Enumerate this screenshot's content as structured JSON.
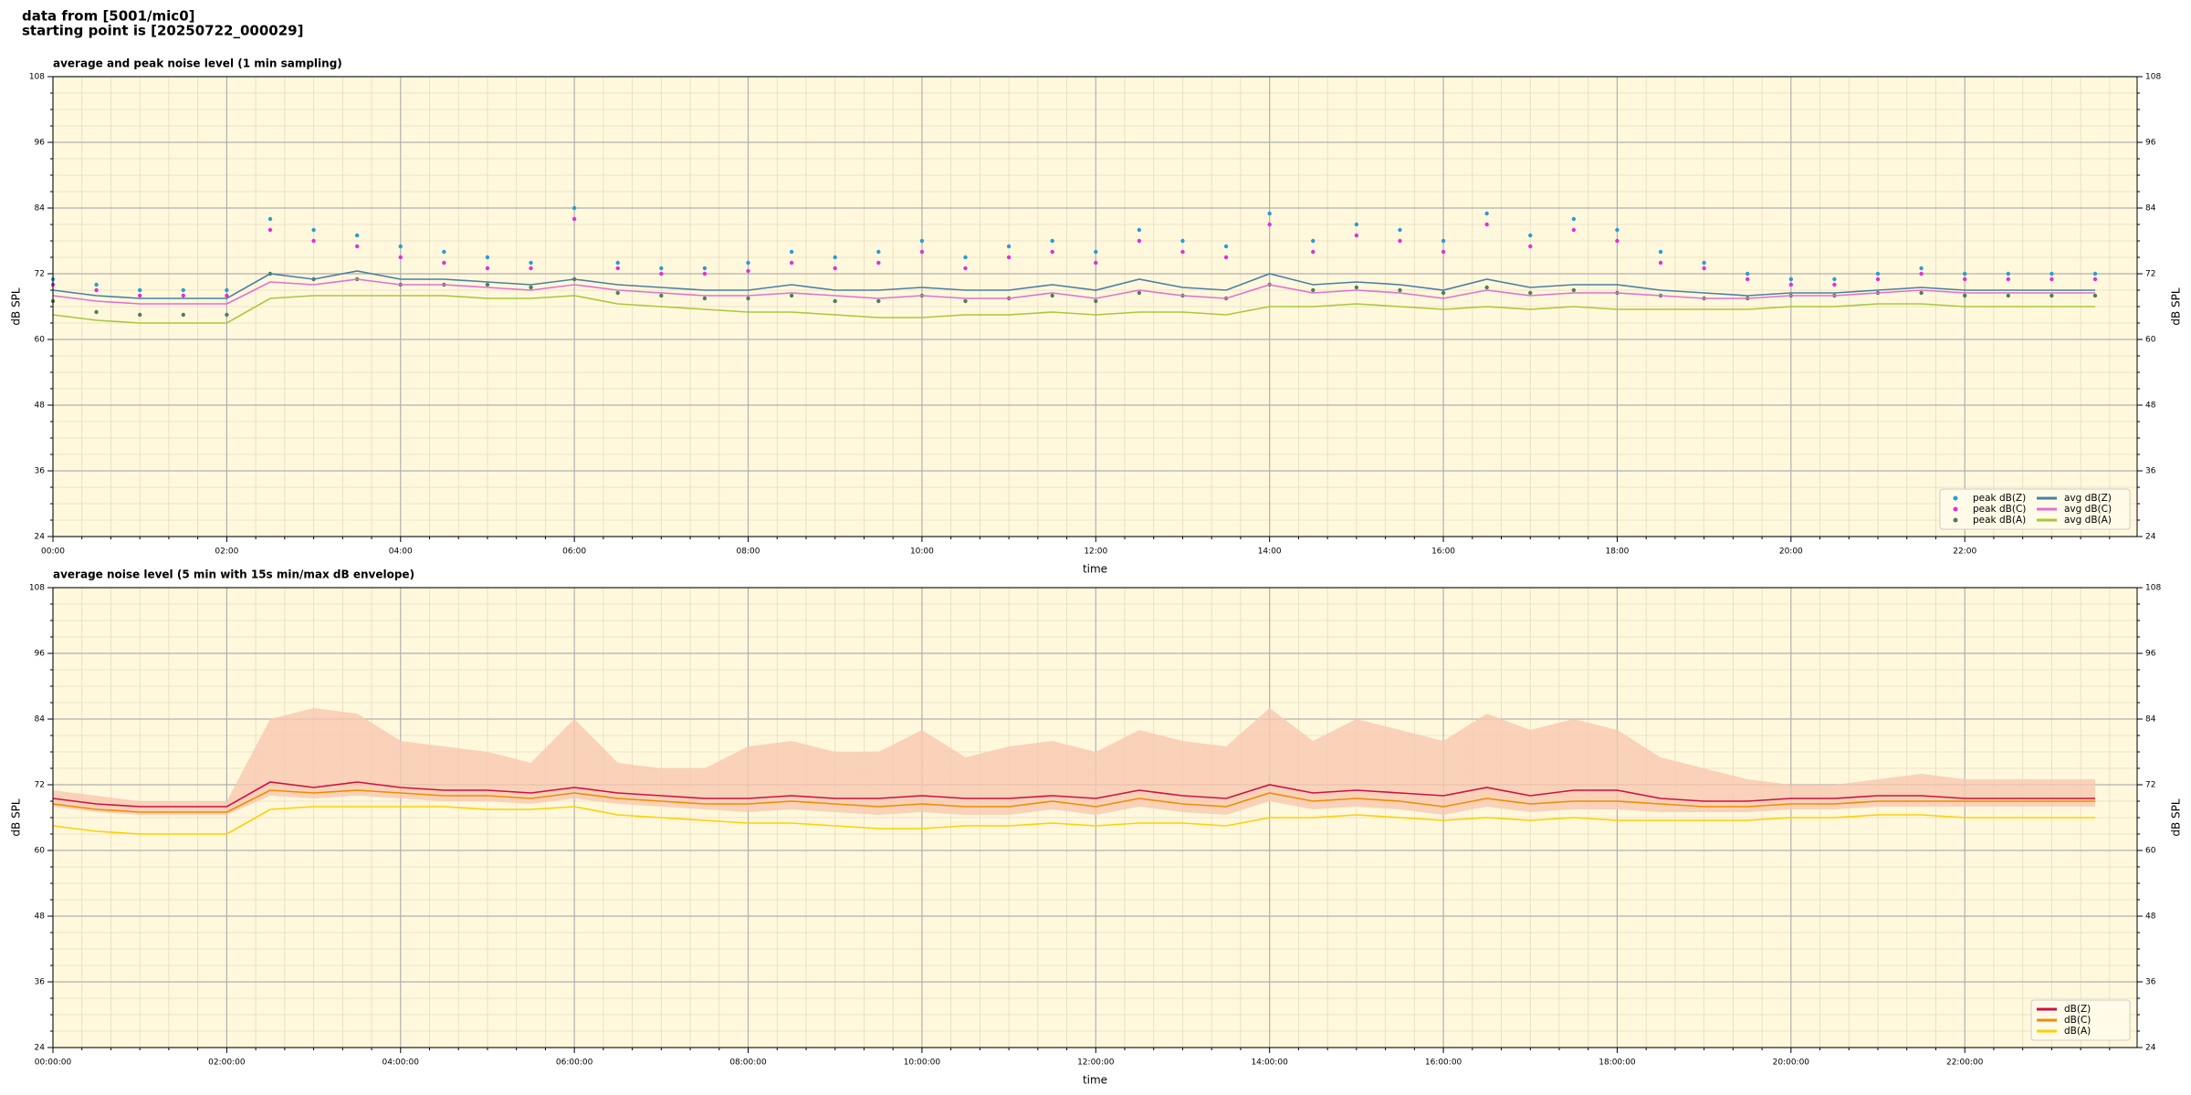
{
  "header": [
    "data from [5001/mic0]",
    "starting point is [20250722_000029]"
  ],
  "chart_data": [
    {
      "type": "line",
      "title": "average and peak noise level (1 min sampling)",
      "xlabel": "time",
      "ylabel": "dB SPL",
      "x": [
        "00:00",
        "00:30",
        "01:00",
        "01:30",
        "02:00",
        "02:30",
        "03:00",
        "03:30",
        "04:00",
        "04:30",
        "05:00",
        "05:30",
        "06:00",
        "06:30",
        "07:00",
        "07:30",
        "08:00",
        "08:30",
        "09:00",
        "09:30",
        "10:00",
        "10:30",
        "11:00",
        "11:30",
        "12:00",
        "12:30",
        "13:00",
        "13:30",
        "14:00",
        "14:30",
        "15:00",
        "15:30",
        "16:00",
        "16:30",
        "17:00",
        "17:30",
        "18:00",
        "18:30",
        "19:00",
        "19:30",
        "20:00",
        "20:30",
        "21:00",
        "21:30",
        "22:00",
        "22:30",
        "23:00",
        "23:30"
      ],
      "xlim": [
        "00:00",
        "23:59"
      ],
      "xticks": [
        "00:00",
        "02:00",
        "04:00",
        "06:00",
        "08:00",
        "10:00",
        "12:00",
        "14:00",
        "16:00",
        "18:00",
        "20:00",
        "22:00"
      ],
      "ylim": [
        24,
        108
      ],
      "yticks": [
        24,
        36,
        48,
        60,
        72,
        84,
        96,
        108
      ],
      "grid": true,
      "background": "#fff8dc",
      "legend": "lower right",
      "legend_columns": 2,
      "series": [
        {
          "name": "peak dB(Z)",
          "kind": "scatter",
          "color": "#2a9bd8",
          "values": [
            71,
            70,
            69,
            69,
            69,
            82,
            80,
            79,
            77,
            76,
            75,
            74,
            84,
            74,
            73,
            73,
            74,
            76,
            75,
            76,
            78,
            75,
            77,
            78,
            76,
            80,
            78,
            77,
            83,
            78,
            81,
            80,
            78,
            83,
            79,
            82,
            80,
            76,
            74,
            72,
            71,
            71,
            72,
            73,
            72,
            72,
            72,
            72
          ]
        },
        {
          "name": "peak dB(C)",
          "kind": "scatter",
          "color": "#e030d8",
          "values": [
            70,
            69,
            68,
            68,
            68,
            80,
            78,
            77,
            75,
            74,
            73,
            73,
            82,
            73,
            72,
            72,
            72.5,
            74,
            73,
            74,
            76,
            73,
            75,
            76,
            74,
            78,
            76,
            75,
            81,
            76,
            79,
            78,
            76,
            81,
            77,
            80,
            78,
            74,
            73,
            71,
            70,
            70,
            71,
            72,
            71,
            71,
            71,
            71
          ]
        },
        {
          "name": "peak dB(A)",
          "kind": "scatter",
          "color": "#4f7f5a",
          "values": [
            67,
            65,
            64.5,
            64.5,
            64.5,
            72,
            71,
            71,
            70,
            70,
            70,
            69.5,
            71,
            68.5,
            68,
            67.5,
            67.5,
            68,
            67,
            67,
            68,
            67,
            67.5,
            68,
            67,
            68.5,
            68,
            67.5,
            70,
            69,
            69.5,
            69,
            68.5,
            69.5,
            68.5,
            69,
            68.5,
            68,
            67.5,
            67.5,
            68,
            68,
            68.5,
            68.5,
            68,
            68,
            68,
            68
          ]
        },
        {
          "name": "avg dB(Z)",
          "kind": "line",
          "color": "#4a7fa5",
          "values": [
            69,
            68,
            67.5,
            67.5,
            67.5,
            72,
            71,
            72.5,
            71,
            71,
            70.5,
            70,
            71,
            70,
            69.5,
            69,
            69,
            70,
            69,
            69,
            69.5,
            69,
            69,
            70,
            69,
            71,
            69.5,
            69,
            72,
            70,
            70.5,
            70,
            69,
            71,
            69.5,
            70,
            70,
            69,
            68.5,
            68,
            68.5,
            68.5,
            69,
            69.5,
            69,
            69,
            69,
            69
          ]
        },
        {
          "name": "avg dB(C)",
          "kind": "line",
          "color": "#e070d0",
          "values": [
            68,
            67,
            66.5,
            66.5,
            66.5,
            70.5,
            70,
            71,
            70,
            70,
            69.5,
            69,
            70,
            69,
            68.5,
            68,
            68,
            68.5,
            68,
            67.5,
            68,
            67.5,
            67.5,
            68.5,
            67.5,
            69,
            68,
            67.5,
            70,
            68.5,
            69,
            68.5,
            67.5,
            69,
            68,
            68.5,
            68.5,
            68,
            67.5,
            67.5,
            68,
            68,
            68.5,
            69,
            68.5,
            68.5,
            68.5,
            68.5
          ]
        },
        {
          "name": "avg dB(A)",
          "kind": "line",
          "color": "#a8c83c",
          "values": [
            64.5,
            63.5,
            63,
            63,
            63,
            67.5,
            68,
            68,
            68,
            68,
            67.5,
            67.5,
            68,
            66.5,
            66,
            65.5,
            65,
            65,
            64.5,
            64,
            64,
            64.5,
            64.5,
            65,
            64.5,
            65,
            65,
            64.5,
            66,
            66,
            66.5,
            66,
            65.5,
            66,
            65.5,
            66,
            65.5,
            65.5,
            65.5,
            65.5,
            66,
            66,
            66.5,
            66.5,
            66,
            66,
            66,
            66
          ]
        }
      ]
    },
    {
      "type": "line",
      "title": "average noise level (5 min with 15s min/max dB envelope)",
      "xlabel": "time",
      "ylabel": "dB SPL",
      "x": [
        "00:00:00",
        "00:30:00",
        "01:00:00",
        "01:30:00",
        "02:00:00",
        "02:30:00",
        "03:00:00",
        "03:30:00",
        "04:00:00",
        "04:30:00",
        "05:00:00",
        "05:30:00",
        "06:00:00",
        "06:30:00",
        "07:00:00",
        "07:30:00",
        "08:00:00",
        "08:30:00",
        "09:00:00",
        "09:30:00",
        "10:00:00",
        "10:30:00",
        "11:00:00",
        "11:30:00",
        "12:00:00",
        "12:30:00",
        "13:00:00",
        "13:30:00",
        "14:00:00",
        "14:30:00",
        "15:00:00",
        "15:30:00",
        "16:00:00",
        "16:30:00",
        "17:00:00",
        "17:30:00",
        "18:00:00",
        "18:30:00",
        "19:00:00",
        "19:30:00",
        "20:00:00",
        "20:30:00",
        "21:00:00",
        "21:30:00",
        "22:00:00",
        "22:30:00",
        "23:00:00",
        "23:30:00"
      ],
      "xlim": [
        "00:00:00",
        "23:59:00"
      ],
      "xticks": [
        "00:00:00",
        "02:00:00",
        "04:00:00",
        "06:00:00",
        "08:00:00",
        "10:00:00",
        "12:00:00",
        "14:00:00",
        "16:00:00",
        "18:00:00",
        "20:00:00",
        "22:00:00"
      ],
      "ylim": [
        24,
        108
      ],
      "yticks": [
        24,
        36,
        48,
        60,
        72,
        84,
        96,
        108
      ],
      "grid": true,
      "background": "#fff8dc",
      "legend": "lower right",
      "legend_columns": 1,
      "envelope": {
        "color": "#f8c8b0",
        "max": [
          71,
          70,
          69,
          69,
          69,
          84,
          86,
          85,
          80,
          79,
          78,
          76,
          84,
          76,
          75,
          75,
          79,
          80,
          78,
          78,
          82,
          77,
          79,
          80,
          78,
          82,
          80,
          79,
          86,
          80,
          84,
          82,
          80,
          85,
          82,
          84,
          82,
          77,
          75,
          73,
          72,
          72,
          73,
          74,
          73,
          73,
          73,
          73
        ],
        "min": [
          68,
          67,
          66.5,
          66.5,
          66.5,
          70,
          69.5,
          70,
          69.5,
          69,
          69,
          68.5,
          69.5,
          68.5,
          68,
          67.5,
          67,
          67.5,
          67,
          66.5,
          67,
          66.5,
          66.5,
          67.5,
          66.5,
          68,
          67,
          66.5,
          69,
          67.5,
          68,
          67.5,
          66.5,
          68,
          67,
          67.5,
          67.5,
          67,
          67,
          67,
          67.5,
          67.5,
          68,
          68,
          68,
          68,
          68,
          68
        ]
      },
      "series": [
        {
          "name": "dB(Z)",
          "kind": "line",
          "color": "#d01040",
          "values": [
            69.5,
            68.5,
            68,
            68,
            68,
            72.5,
            71.5,
            72.5,
            71.5,
            71,
            71,
            70.5,
            71.5,
            70.5,
            70,
            69.5,
            69.5,
            70,
            69.5,
            69.5,
            70,
            69.5,
            69.5,
            70,
            69.5,
            71,
            70,
            69.5,
            72,
            70.5,
            71,
            70.5,
            70,
            71.5,
            70,
            71,
            71,
            69.5,
            69,
            69,
            69.5,
            69.5,
            70,
            70,
            69.5,
            69.5,
            69.5,
            69.5
          ]
        },
        {
          "name": "dB(C)",
          "kind": "line",
          "color": "#f08c00",
          "values": [
            68.5,
            67.5,
            67,
            67,
            67,
            71,
            70.5,
            71,
            70.5,
            70,
            70,
            69.5,
            70.5,
            69.5,
            69,
            68.5,
            68.5,
            69,
            68.5,
            68,
            68.5,
            68,
            68,
            69,
            68,
            69.5,
            68.5,
            68,
            70.5,
            69,
            69.5,
            69,
            68,
            69.5,
            68.5,
            69,
            69,
            68.5,
            68,
            68,
            68.5,
            68.5,
            69,
            69,
            69,
            69,
            69,
            69
          ]
        },
        {
          "name": "dB(A)",
          "kind": "line",
          "color": "#ffd000",
          "values": [
            64.5,
            63.5,
            63,
            63,
            63,
            67.5,
            68,
            68,
            68,
            68,
            67.5,
            67.5,
            68,
            66.5,
            66,
            65.5,
            65,
            65,
            64.5,
            64,
            64,
            64.5,
            64.5,
            65,
            64.5,
            65,
            65,
            64.5,
            66,
            66,
            66.5,
            66,
            65.5,
            66,
            65.5,
            66,
            65.5,
            65.5,
            65.5,
            65.5,
            66,
            66,
            66.5,
            66.5,
            66,
            66,
            66,
            66
          ]
        }
      ]
    }
  ]
}
